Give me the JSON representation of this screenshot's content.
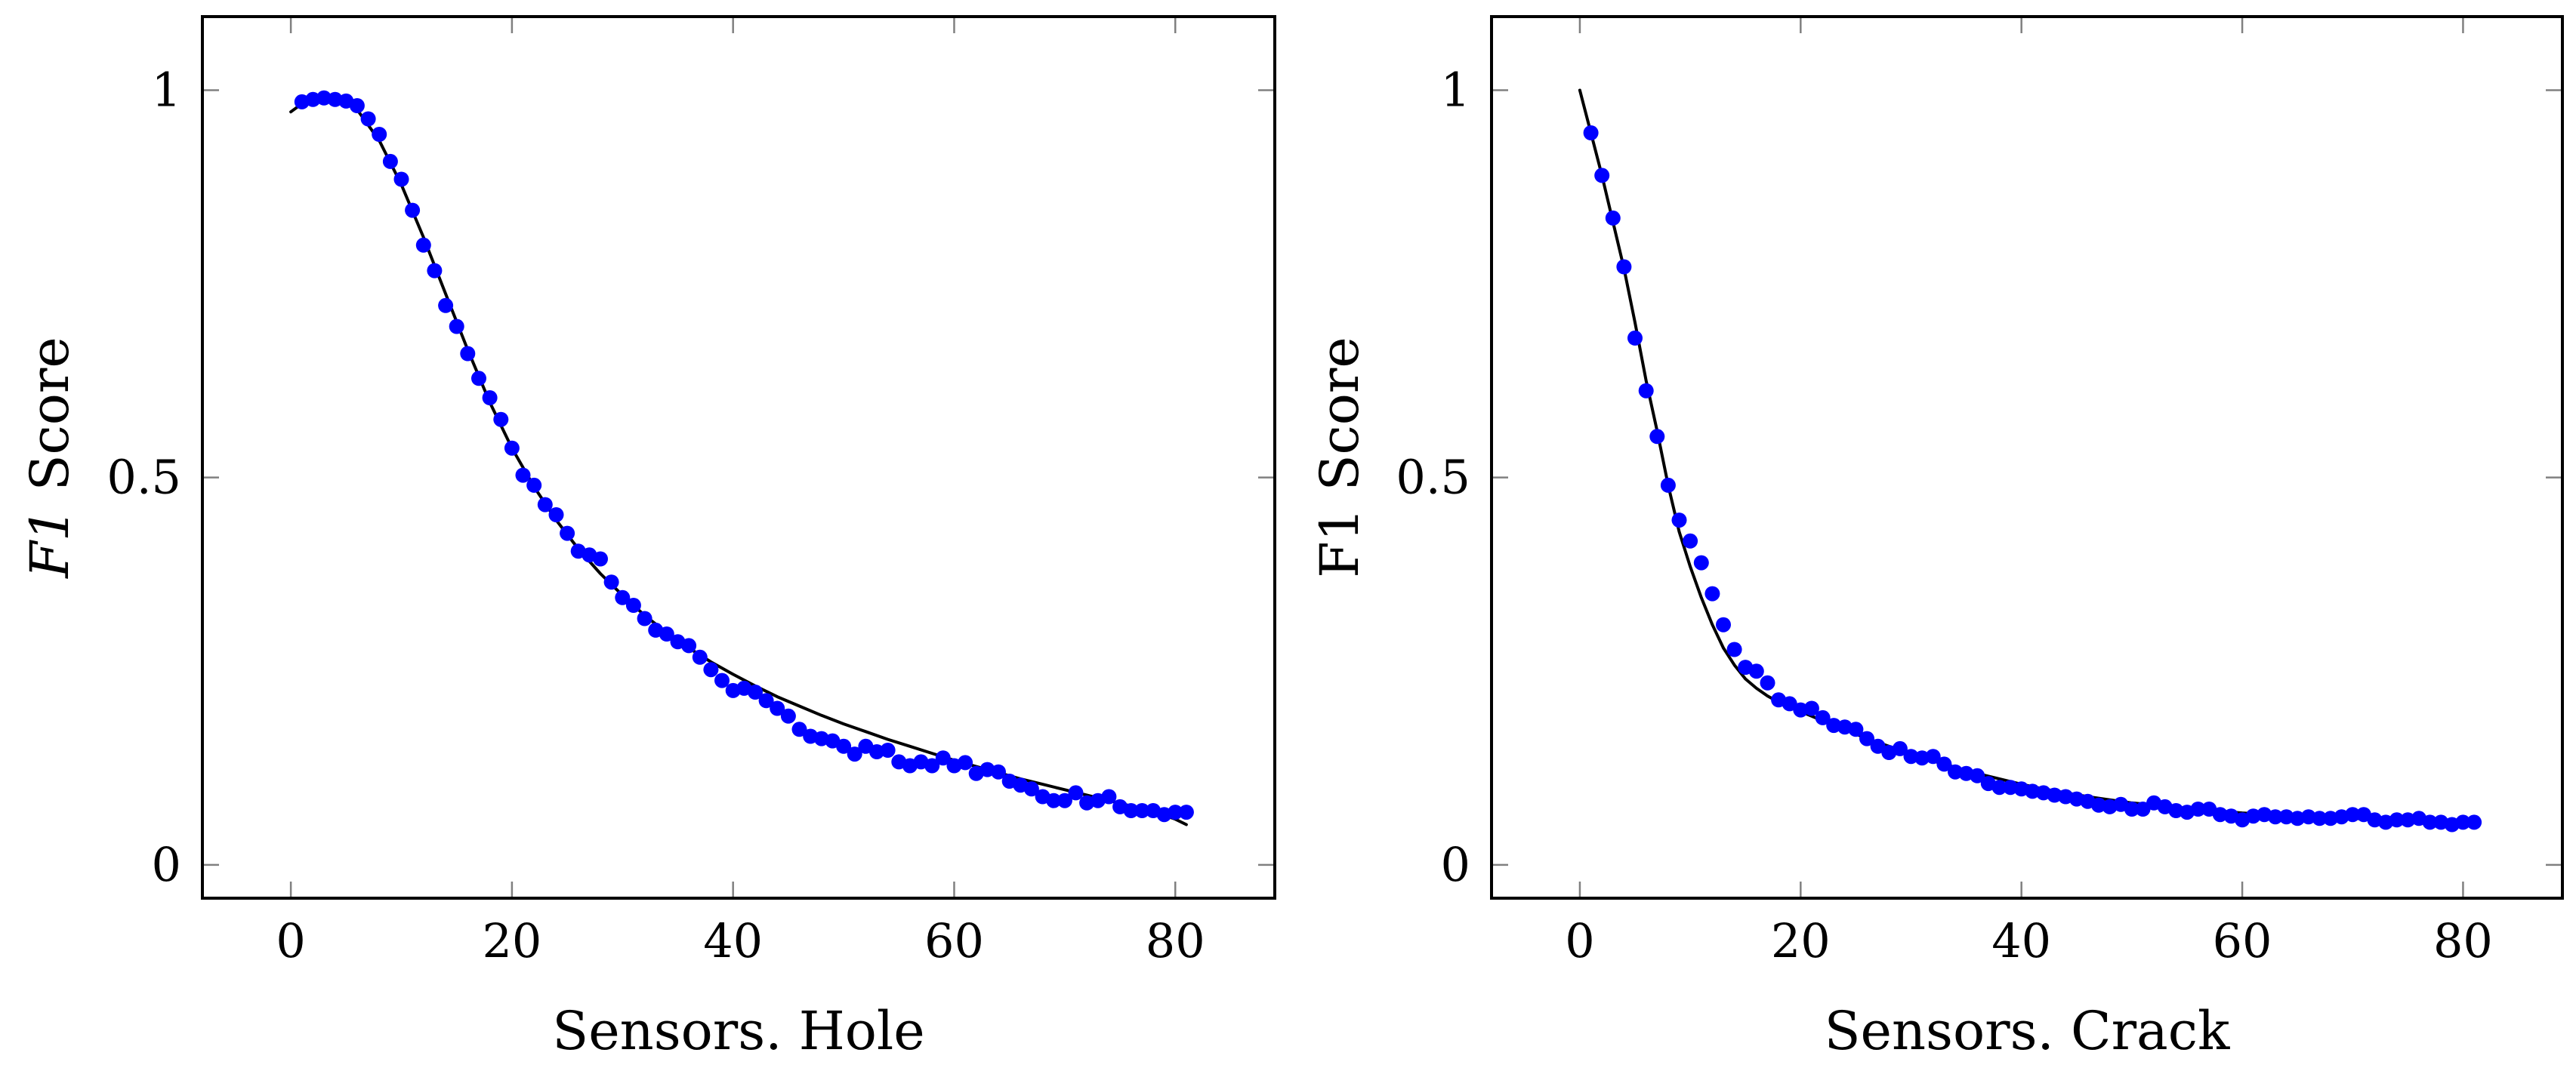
{
  "marker_color": "#0000ff",
  "line_color": "#000000",
  "chart_data": [
    {
      "id": "hole",
      "type": "scatter",
      "xlabel": "Sensors. Hole",
      "ylabel_italic": "F1",
      "ylabel_rest": " Score",
      "xlim": [
        -8,
        89
      ],
      "ylim": [
        -0.043,
        1.095
      ],
      "xticks": [
        0,
        20,
        40,
        60,
        80
      ],
      "yticks": [
        0,
        0.5,
        1
      ],
      "ytick_labels": [
        "0",
        "0.5",
        "1"
      ],
      "series": [
        {
          "name": "measured",
          "style": "markers",
          "x": [
            1,
            2,
            3,
            4,
            5,
            6,
            7,
            8,
            9,
            10,
            11,
            12,
            13,
            14,
            15,
            16,
            17,
            18,
            19,
            20,
            21,
            22,
            23,
            24,
            25,
            26,
            27,
            28,
            29,
            30,
            31,
            32,
            33,
            34,
            35,
            36,
            37,
            38,
            39,
            40,
            41,
            42,
            43,
            44,
            45,
            46,
            47,
            48,
            49,
            50,
            51,
            52,
            53,
            54,
            55,
            56,
            57,
            58,
            59,
            60,
            61,
            62,
            63,
            64,
            65,
            66,
            67,
            68,
            69,
            70,
            71,
            72,
            73,
            74,
            75,
            76,
            77,
            78,
            79,
            80,
            81
          ],
          "y": [
            0.985,
            0.988,
            0.99,
            0.988,
            0.986,
            0.98,
            0.963,
            0.943,
            0.908,
            0.885,
            0.845,
            0.8,
            0.767,
            0.722,
            0.695,
            0.66,
            0.628,
            0.603,
            0.575,
            0.538,
            0.503,
            0.49,
            0.465,
            0.452,
            0.428,
            0.405,
            0.4,
            0.395,
            0.365,
            0.345,
            0.335,
            0.318,
            0.303,
            0.298,
            0.288,
            0.283,
            0.268,
            0.252,
            0.238,
            0.225,
            0.228,
            0.223,
            0.212,
            0.202,
            0.192,
            0.175,
            0.166,
            0.163,
            0.16,
            0.153,
            0.143,
            0.153,
            0.146,
            0.148,
            0.133,
            0.128,
            0.133,
            0.128,
            0.138,
            0.128,
            0.132,
            0.118,
            0.123,
            0.12,
            0.108,
            0.103,
            0.098,
            0.088,
            0.083,
            0.083,
            0.093,
            0.08,
            0.083,
            0.088,
            0.075,
            0.07,
            0.07,
            0.07,
            0.065,
            0.068,
            0.068
          ]
        },
        {
          "name": "fit",
          "style": "line",
          "x": [
            0,
            2,
            4,
            6,
            8,
            10,
            12,
            14,
            16,
            18,
            20,
            22,
            24,
            26,
            28,
            30,
            32,
            34,
            36,
            38,
            40,
            42,
            44,
            46,
            48,
            50,
            52,
            54,
            56,
            58,
            60,
            62,
            64,
            66,
            68,
            70,
            72,
            74,
            76,
            78,
            80,
            81
          ],
          "y": [
            0.972,
            0.993,
            0.994,
            0.975,
            0.935,
            0.878,
            0.81,
            0.737,
            0.665,
            0.597,
            0.538,
            0.488,
            0.445,
            0.408,
            0.376,
            0.348,
            0.322,
            0.3,
            0.28,
            0.262,
            0.246,
            0.231,
            0.217,
            0.205,
            0.193,
            0.182,
            0.172,
            0.162,
            0.153,
            0.144,
            0.135,
            0.127,
            0.119,
            0.111,
            0.104,
            0.097,
            0.09,
            0.083,
            0.076,
            0.069,
            0.059,
            0.052
          ]
        }
      ]
    },
    {
      "id": "crack",
      "type": "scatter",
      "xlabel": "Sensors. Crack",
      "ylabel_italic": "",
      "ylabel_rest": "F1 Score",
      "xlim": [
        -8,
        89
      ],
      "ylim": [
        -0.043,
        1.095
      ],
      "xticks": [
        0,
        20,
        40,
        60,
        80
      ],
      "yticks": [
        0,
        0.5,
        1
      ],
      "ytick_labels": [
        "0",
        "0.5",
        "1"
      ],
      "series": [
        {
          "name": "measured",
          "style": "markers",
          "x": [
            1,
            2,
            3,
            4,
            5,
            6,
            7,
            8,
            9,
            10,
            11,
            12,
            13,
            14,
            15,
            16,
            17,
            18,
            19,
            20,
            21,
            22,
            23,
            24,
            25,
            26,
            27,
            28,
            29,
            30,
            31,
            32,
            33,
            34,
            35,
            36,
            37,
            38,
            39,
            40,
            41,
            42,
            43,
            44,
            45,
            46,
            47,
            48,
            49,
            50,
            51,
            52,
            53,
            54,
            55,
            56,
            57,
            58,
            59,
            60,
            61,
            62,
            63,
            64,
            65,
            66,
            67,
            68,
            69,
            70,
            71,
            72,
            73,
            74,
            75,
            76,
            77,
            78,
            79,
            80,
            81
          ],
          "y": [
            0.945,
            0.89,
            0.835,
            0.772,
            0.68,
            0.612,
            0.553,
            0.49,
            0.445,
            0.418,
            0.39,
            0.35,
            0.31,
            0.278,
            0.255,
            0.25,
            0.235,
            0.213,
            0.208,
            0.2,
            0.202,
            0.19,
            0.18,
            0.178,
            0.175,
            0.163,
            0.153,
            0.145,
            0.15,
            0.14,
            0.138,
            0.14,
            0.13,
            0.12,
            0.118,
            0.115,
            0.105,
            0.1,
            0.1,
            0.098,
            0.095,
            0.093,
            0.09,
            0.088,
            0.085,
            0.082,
            0.077,
            0.075,
            0.078,
            0.072,
            0.072,
            0.08,
            0.075,
            0.07,
            0.068,
            0.072,
            0.072,
            0.065,
            0.063,
            0.058,
            0.063,
            0.065,
            0.062,
            0.062,
            0.06,
            0.062,
            0.06,
            0.06,
            0.062,
            0.065,
            0.065,
            0.058,
            0.055,
            0.058,
            0.058,
            0.06,
            0.055,
            0.055,
            0.052,
            0.055,
            0.055
          ]
        },
        {
          "name": "fit",
          "style": "line",
          "x": [
            0,
            1,
            2,
            3,
            4,
            5,
            6,
            7,
            8,
            9,
            10,
            11,
            12,
            13,
            14,
            15,
            16,
            17,
            18,
            20,
            22,
            24,
            26,
            28,
            30,
            32,
            34,
            36,
            38,
            40,
            42,
            44,
            46,
            48,
            50,
            55,
            60,
            65,
            70,
            75,
            81
          ],
          "y": [
            1.0,
            0.945,
            0.89,
            0.83,
            0.77,
            0.7,
            0.625,
            0.56,
            0.49,
            0.43,
            0.385,
            0.345,
            0.31,
            0.28,
            0.258,
            0.24,
            0.228,
            0.218,
            0.21,
            0.198,
            0.186,
            0.175,
            0.163,
            0.153,
            0.143,
            0.134,
            0.126,
            0.118,
            0.111,
            0.104,
            0.098,
            0.093,
            0.088,
            0.084,
            0.08,
            0.073,
            0.067,
            0.063,
            0.06,
            0.057,
            0.055
          ]
        }
      ]
    }
  ]
}
